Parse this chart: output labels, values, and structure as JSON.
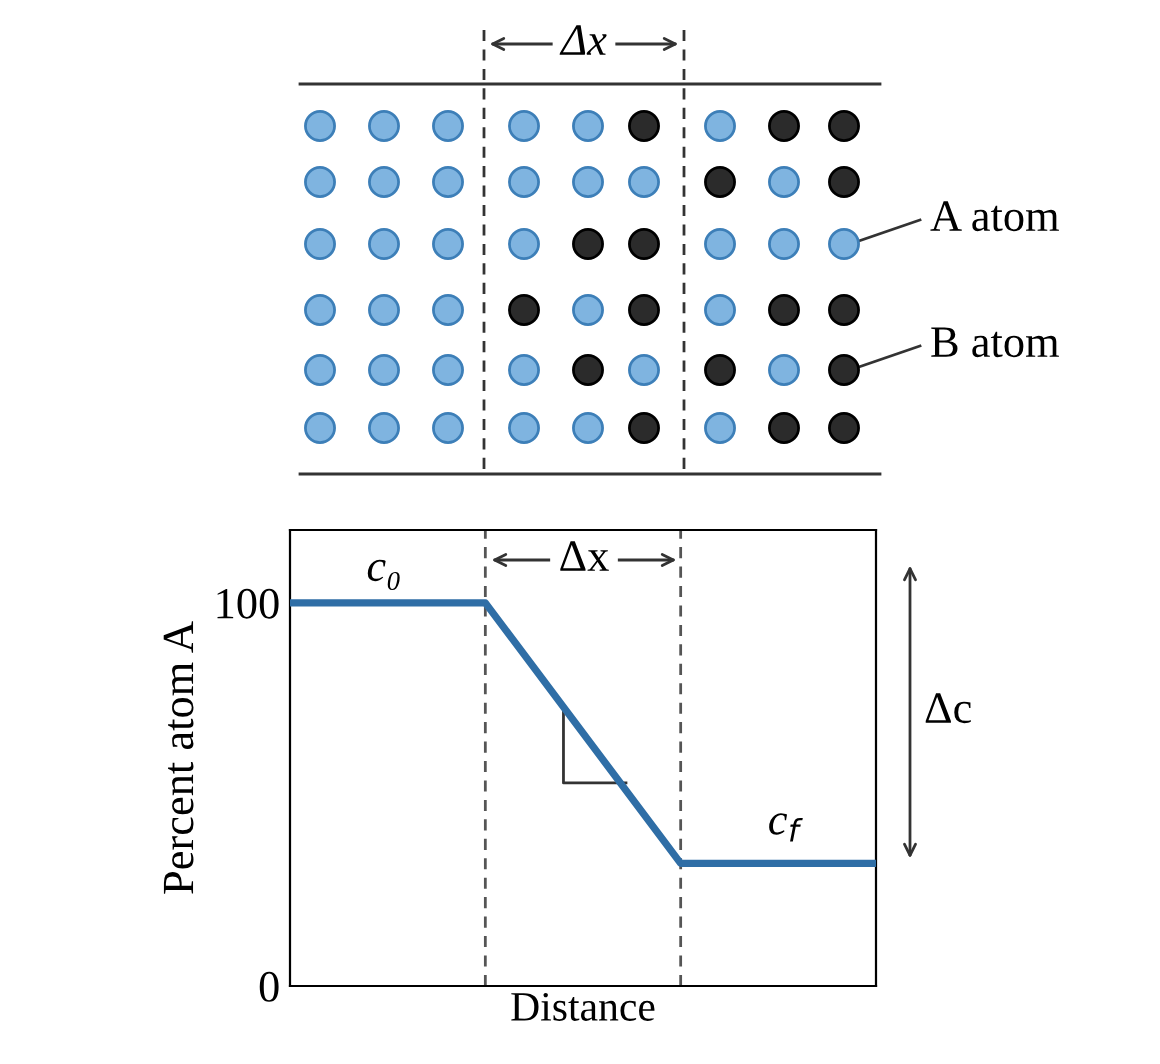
{
  "chart_data": {
    "type": "line",
    "xlabel": "Distance",
    "ylabel": "Percent atom A",
    "categories": [
      null,
      null,
      null,
      null
    ],
    "series": [
      {
        "color": "#2f6ea6",
        "values": [
          100,
          100,
          32,
          32
        ]
      }
    ],
    "ylim": [
      0,
      119
    ],
    "yticks": [
      0,
      100
    ],
    "tick_labels": "y",
    "grid": false,
    "legend": false,
    "marker": "none",
    "line_style": "solid",
    "annotations": [
      "Δx",
      "A atom",
      "B atom",
      "Δx",
      "c₀",
      "c$_{f}$",
      "Δc"
    ]
  }
}
